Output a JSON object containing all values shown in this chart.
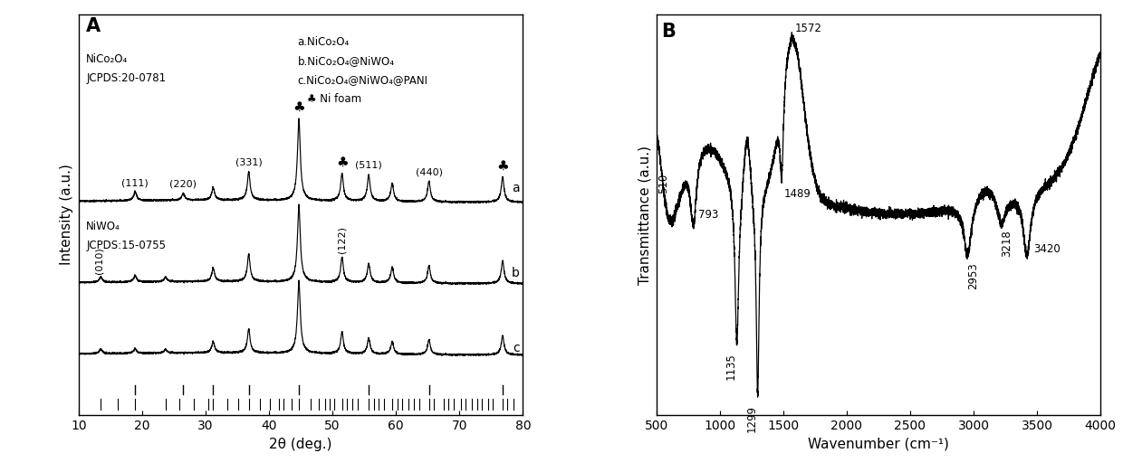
{
  "panel_A": {
    "xlabel": "2θ (deg.)",
    "ylabel": "Intensity (a.u.)",
    "xlim": [
      10,
      80
    ],
    "title": "A",
    "peaks_a": [
      18.9,
      26.5,
      31.2,
      36.8,
      44.7,
      51.5,
      55.7,
      59.4,
      65.2,
      76.8
    ],
    "heights_a": [
      0.2,
      0.15,
      0.28,
      0.62,
      1.8,
      0.6,
      0.58,
      0.4,
      0.45,
      0.55
    ],
    "peaks_b": [
      13.5,
      18.9,
      23.7,
      31.2,
      36.8,
      44.7,
      51.5,
      55.7,
      59.4,
      65.2,
      76.8
    ],
    "heights_b": [
      0.12,
      0.14,
      0.1,
      0.3,
      0.6,
      1.7,
      0.55,
      0.42,
      0.35,
      0.38,
      0.5
    ],
    "peaks_c": [
      13.5,
      18.9,
      23.7,
      31.2,
      36.8,
      44.7,
      51.5,
      55.7,
      59.4,
      65.2,
      76.8
    ],
    "heights_c": [
      0.1,
      0.1,
      0.08,
      0.25,
      0.52,
      1.6,
      0.48,
      0.35,
      0.28,
      0.32,
      0.42
    ],
    "tick_top": [
      18.9,
      26.5,
      31.2,
      36.8,
      44.7,
      55.7,
      65.2,
      76.8
    ],
    "tick_bottom": [
      13.5,
      16.2,
      18.9,
      23.7,
      25.8,
      28.1,
      30.5,
      31.2,
      33.4,
      35.1,
      36.8,
      38.5,
      40.1,
      41.5,
      42.3,
      43.5,
      44.7,
      46.5,
      47.8,
      48.9,
      49.5,
      50.2,
      51.5,
      52.3,
      53.1,
      54.0,
      55.7,
      56.5,
      57.2,
      58.1,
      59.4,
      60.3,
      61.0,
      62.0,
      62.8,
      63.7,
      65.2,
      66.0,
      67.5,
      68.3,
      69.1,
      70.2,
      71.0,
      72.0,
      72.8,
      73.5,
      74.5,
      75.3,
      76.8,
      77.5,
      78.5
    ]
  },
  "panel_B": {
    "xlabel": "Wavenumber (cm⁻¹)",
    "ylabel": "Transmittance (a.u.)",
    "xlim": [
      500,
      4000
    ],
    "title": "B"
  },
  "background": "#ffffff"
}
